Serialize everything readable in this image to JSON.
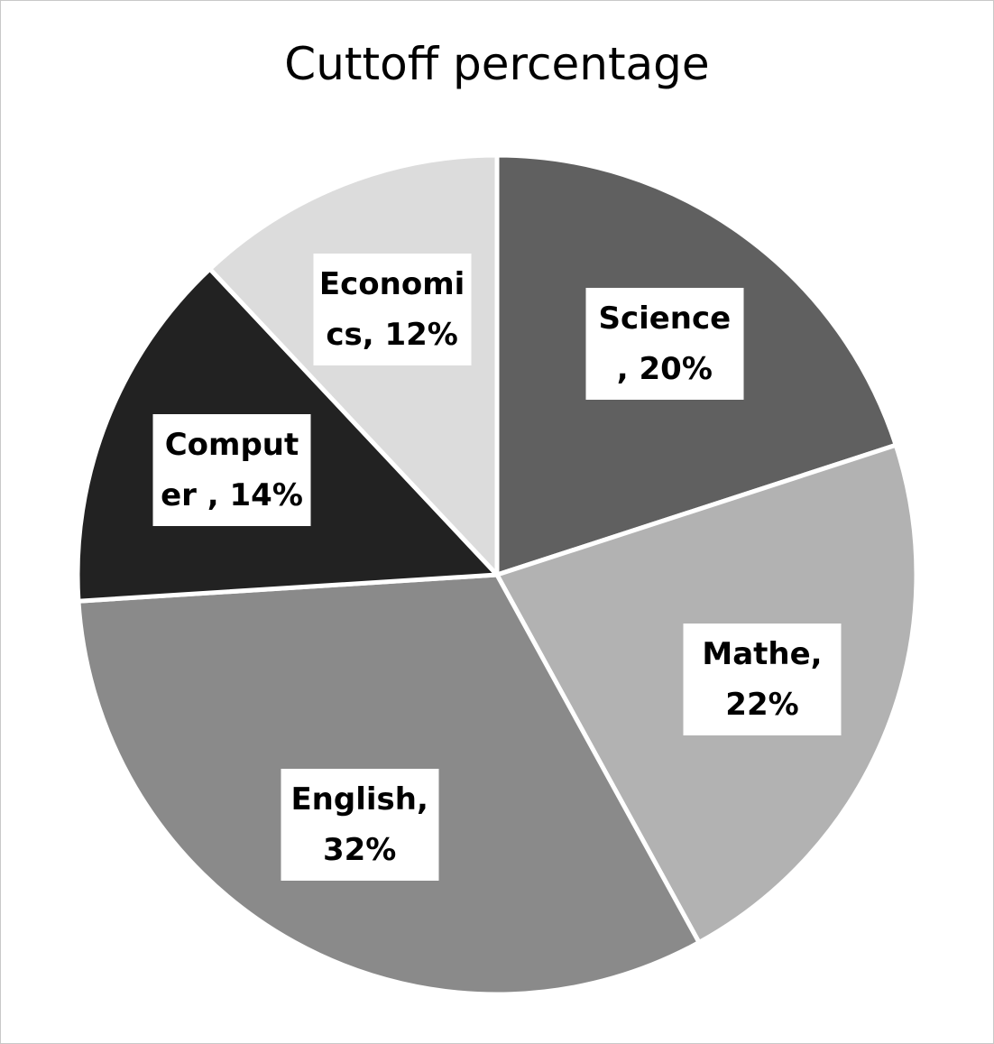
{
  "chart_data": {
    "type": "pie",
    "title": "Cuttoff percentage",
    "values": [
      20,
      22,
      32,
      14,
      12
    ],
    "value_labels": [
      "Science , 20%",
      "Mathe, 22%",
      "English, 32%",
      "Computer , 14%",
      "Economics, 12%"
    ],
    "colors": [
      "#606060",
      "#b2b2b2",
      "#8a8a8a",
      "#222222",
      "#dcdcdc"
    ]
  }
}
